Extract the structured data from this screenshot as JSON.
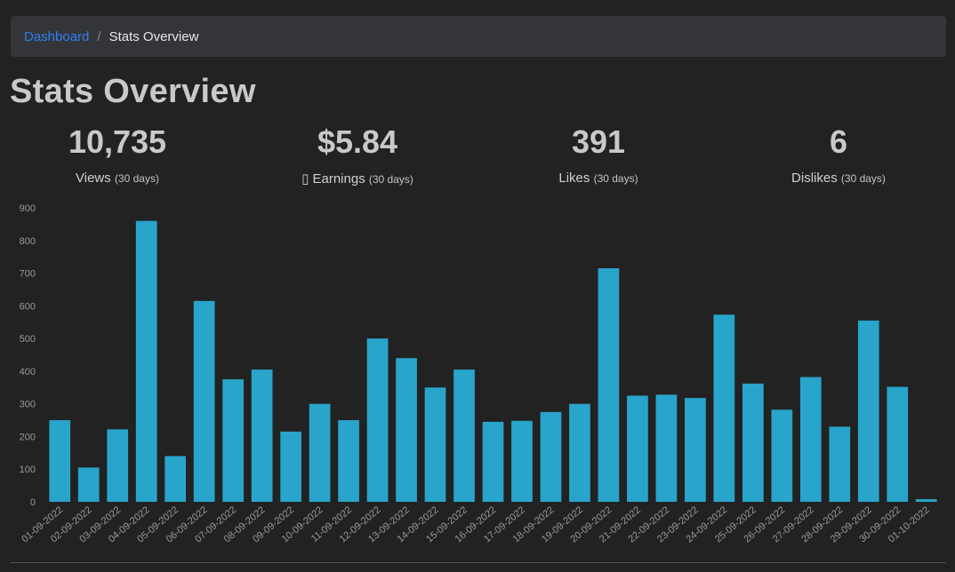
{
  "breadcrumb": {
    "home": "Dashboard",
    "separator": "/",
    "current": "Stats Overview"
  },
  "page": {
    "title": "Stats Overview"
  },
  "stats": [
    {
      "value": "10,735",
      "label": "Views",
      "period": "(30 days)"
    },
    {
      "value": "$5.84",
      "label": "▯ Earnings",
      "period": "(30 days)"
    },
    {
      "value": "391",
      "label": "Likes",
      "period": "(30 days)"
    },
    {
      "value": "6",
      "label": "Dislikes",
      "period": "(30 days)"
    }
  ],
  "colors": {
    "bar": "#29a4cb",
    "background": "#222222",
    "link": "#2f7ef6"
  },
  "chart_data": {
    "type": "bar",
    "categories": [
      "01-09-2022",
      "02-09-2022",
      "03-09-2022",
      "04-09-2022",
      "05-09-2022",
      "06-09-2022",
      "07-09-2022",
      "08-09-2022",
      "09-09-2022",
      "10-09-2022",
      "11-09-2022",
      "12-09-2022",
      "13-09-2022",
      "14-09-2022",
      "15-09-2022",
      "16-09-2022",
      "17-09-2022",
      "18-09-2022",
      "19-09-2022",
      "20-09-2022",
      "21-09-2022",
      "22-09-2022",
      "23-09-2022",
      "24-09-2022",
      "25-09-2022",
      "26-09-2022",
      "27-09-2022",
      "28-09-2022",
      "29-09-2022",
      "30-09-2022",
      "01-10-2022"
    ],
    "values": [
      250,
      105,
      222,
      860,
      140,
      615,
      375,
      405,
      215,
      300,
      250,
      500,
      440,
      350,
      405,
      245,
      248,
      275,
      300,
      715,
      325,
      328,
      318,
      573,
      362,
      282,
      382,
      230,
      555,
      352,
      8
    ],
    "ylim": [
      0,
      900
    ],
    "yticks": [
      0,
      100,
      200,
      300,
      400,
      500,
      600,
      700,
      800,
      900
    ],
    "grid": false,
    "title": "",
    "xlabel": "",
    "ylabel": ""
  }
}
